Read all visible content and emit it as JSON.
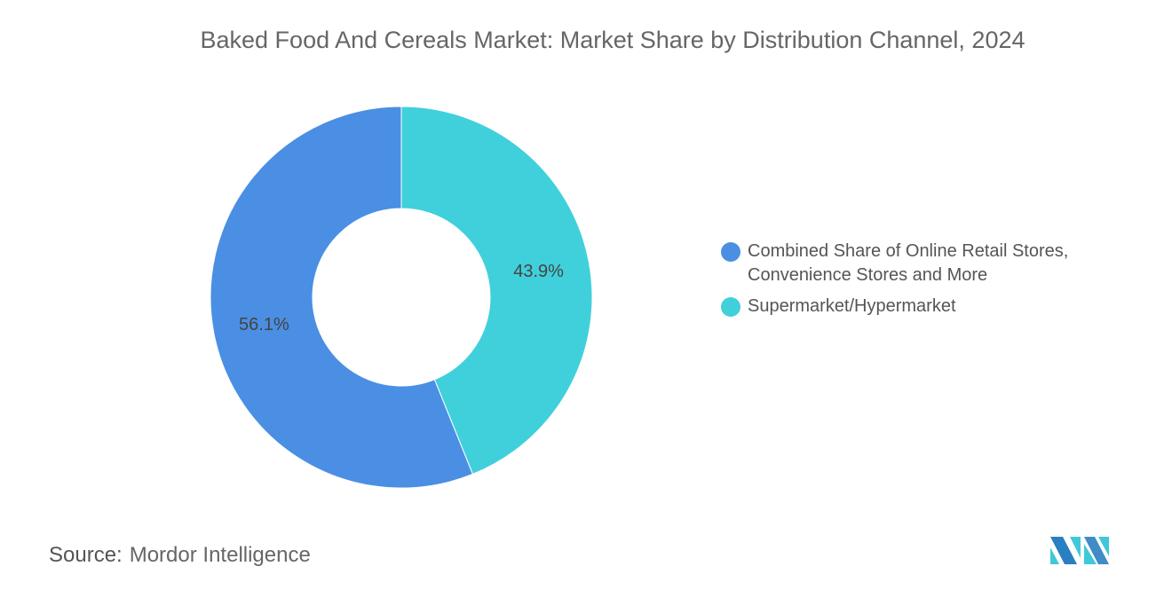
{
  "chart_data": {
    "type": "pie",
    "title": "Baked Food And Cereals Market: Market Share by Distribution Channel, 2024",
    "donut": true,
    "series": [
      {
        "name": "Supermarket/Hypermarket",
        "value": 43.9,
        "label": "43.9%",
        "color": "#40d0db"
      },
      {
        "name": "Combined Share of Online Retail Stores, Convenience Stores and More",
        "value": 56.1,
        "label": "56.1%",
        "color": "#4a8fe3"
      }
    ],
    "legend_placement": "right"
  },
  "legend": {
    "items": [
      {
        "label_line1": "Combined Share of Online Retail Stores,",
        "label_line2": "Convenience Stores and More",
        "color": "#4a8fe3"
      },
      {
        "label_line1": "Supermarket/Hypermarket",
        "color": "#40d0db"
      }
    ]
  },
  "source": {
    "prefix": "Source:",
    "text": "Mordor Intelligence"
  },
  "logo": {
    "name": "Mordor Intelligence logo",
    "text": "MI"
  }
}
